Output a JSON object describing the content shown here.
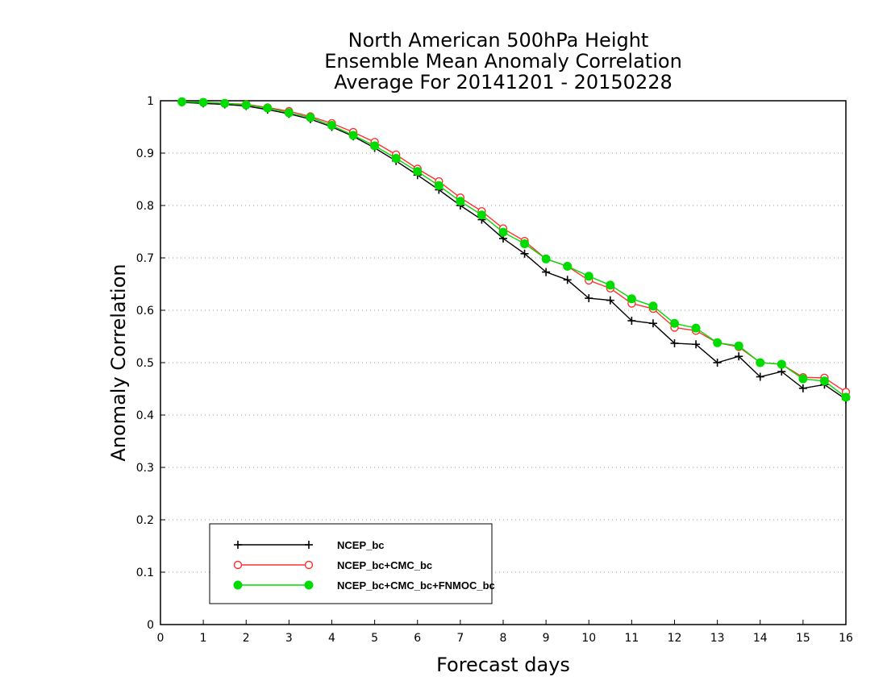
{
  "chart_data": {
    "type": "line",
    "title_lines": [
      "North American 500hPa Height",
      "Ensemble Mean Anomaly Correlation",
      "Average For 20141201 - 20150228"
    ],
    "xlabel": "Forecast days",
    "ylabel": "Anomaly Correlation",
    "xlim": [
      0,
      16
    ],
    "ylim": [
      0,
      1
    ],
    "x_ticks": [
      0,
      1,
      2,
      3,
      4,
      5,
      6,
      7,
      8,
      9,
      10,
      11,
      12,
      13,
      14,
      15,
      16
    ],
    "y_ticks": [
      0,
      0.1,
      0.2,
      0.3,
      0.4,
      0.5,
      0.6,
      0.7,
      0.8,
      0.9,
      1
    ],
    "y_tick_labels": [
      "0",
      "0.1",
      "0.2",
      "0.3",
      "0.4",
      "0.5",
      "0.6",
      "0.7",
      "0.8",
      "0.9",
      "1"
    ],
    "grid": "horizontal dotted",
    "legend_position": "bottom-left",
    "x": [
      0.5,
      1,
      1.5,
      2,
      2.5,
      3,
      3.5,
      4,
      4.5,
      5,
      5.5,
      6,
      6.5,
      7,
      7.5,
      8,
      8.5,
      9,
      9.5,
      10,
      10.5,
      11,
      11.5,
      12,
      12.5,
      13,
      13.5,
      14,
      14.5,
      15,
      15.5,
      16
    ],
    "series": [
      {
        "name": "NCEP_bc",
        "color": "#000000",
        "marker": "plus",
        "values": [
          0.997,
          0.995,
          0.993,
          0.99,
          0.983,
          0.975,
          0.965,
          0.95,
          0.932,
          0.91,
          0.885,
          0.858,
          0.83,
          0.8,
          0.773,
          0.737,
          0.708,
          0.673,
          0.658,
          0.623,
          0.619,
          0.58,
          0.575,
          0.537,
          0.535,
          0.5,
          0.512,
          0.473,
          0.483,
          0.451,
          0.458,
          0.43
        ]
      },
      {
        "name": "NCEP_bc+CMC_bc",
        "color": "#ff3030",
        "marker": "open-circle",
        "values": [
          0.998,
          0.997,
          0.995,
          0.993,
          0.987,
          0.98,
          0.97,
          0.957,
          0.94,
          0.921,
          0.897,
          0.87,
          0.846,
          0.815,
          0.789,
          0.756,
          0.732,
          0.698,
          0.684,
          0.657,
          0.642,
          0.613,
          0.603,
          0.567,
          0.561,
          0.538,
          0.53,
          0.5,
          0.497,
          0.472,
          0.471,
          0.444
        ]
      },
      {
        "name": "NCEP_bc+CMC_bc+FNMOC_bc",
        "color": "#00dc00",
        "marker": "filled-circle",
        "values": [
          0.998,
          0.997,
          0.995,
          0.992,
          0.986,
          0.977,
          0.968,
          0.953,
          0.934,
          0.914,
          0.89,
          0.865,
          0.838,
          0.808,
          0.782,
          0.749,
          0.727,
          0.698,
          0.684,
          0.665,
          0.648,
          0.622,
          0.608,
          0.575,
          0.566,
          0.538,
          0.532,
          0.5,
          0.497,
          0.469,
          0.465,
          0.434
        ]
      }
    ]
  }
}
